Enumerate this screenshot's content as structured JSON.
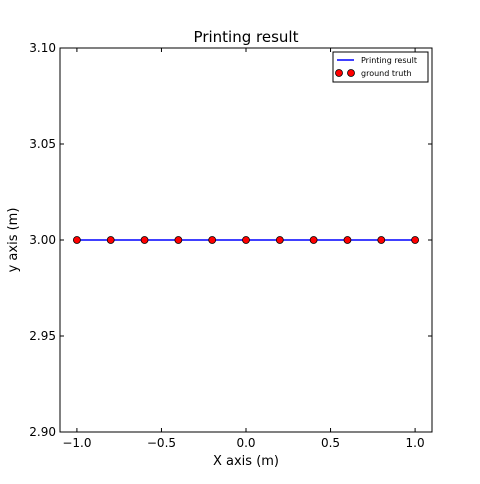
{
  "chart_data": {
    "type": "line",
    "title": "Printing result",
    "xlabel": "X axis (m)",
    "ylabel": "y axis (m)",
    "xlim": [
      -1.1,
      1.1
    ],
    "ylim": [
      2.9,
      3.1
    ],
    "xticks": [
      -1.0,
      -0.5,
      0.0,
      0.5,
      1.0
    ],
    "xtick_labels": [
      "−1.0",
      "−0.5",
      "0.0",
      "0.5",
      "1.0"
    ],
    "yticks": [
      2.9,
      2.95,
      3.0,
      3.05,
      3.1
    ],
    "ytick_labels": [
      "2.90",
      "2.95",
      "3.00",
      "3.05",
      "3.10"
    ],
    "grid": false,
    "legend_position": "top-right",
    "series": [
      {
        "name": "Printing result",
        "kind": "line",
        "color": "#0000ff",
        "x": [
          -1.0,
          -0.8,
          -0.6,
          -0.4,
          -0.2,
          0.0,
          0.2,
          0.4,
          0.6,
          0.8,
          1.0
        ],
        "y": [
          3.0,
          3.0,
          3.0,
          3.0,
          3.0,
          3.0,
          3.0,
          3.0,
          3.0,
          3.0,
          3.0
        ]
      },
      {
        "name": "ground truth",
        "kind": "markers",
        "color": "#ff0000",
        "x": [
          -1.0,
          -0.8,
          -0.6,
          -0.4,
          -0.2,
          0.0,
          0.2,
          0.4,
          0.6,
          0.8,
          1.0
        ],
        "y": [
          3.0,
          3.0,
          3.0,
          3.0,
          3.0,
          3.0,
          3.0,
          3.0,
          3.0,
          3.0,
          3.0
        ]
      }
    ]
  }
}
